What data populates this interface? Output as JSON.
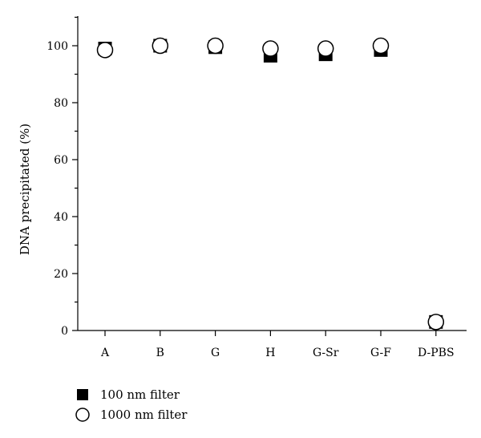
{
  "chart_data": {
    "type": "scatter",
    "categories": [
      "A",
      "B",
      "G",
      "H",
      "G-Sr",
      "G-F",
      "D-PBS"
    ],
    "ylabel": "DNA precipitated (%)",
    "xlabel": "",
    "ylim": [
      0,
      110
    ],
    "yticks": [
      0,
      20,
      40,
      60,
      80,
      100
    ],
    "grid": false,
    "legend_position": "bottom-left",
    "series": [
      {
        "name": "100 nm filter",
        "marker": "square-filled",
        "color": "#000000",
        "values": [
          99,
          100,
          99.5,
          96.5,
          97,
          98.5,
          3
        ]
      },
      {
        "name": "1000 nm filter",
        "marker": "circle-open",
        "color": "#000000",
        "values": [
          98.5,
          100,
          100,
          99,
          99,
          100,
          3
        ]
      }
    ]
  }
}
